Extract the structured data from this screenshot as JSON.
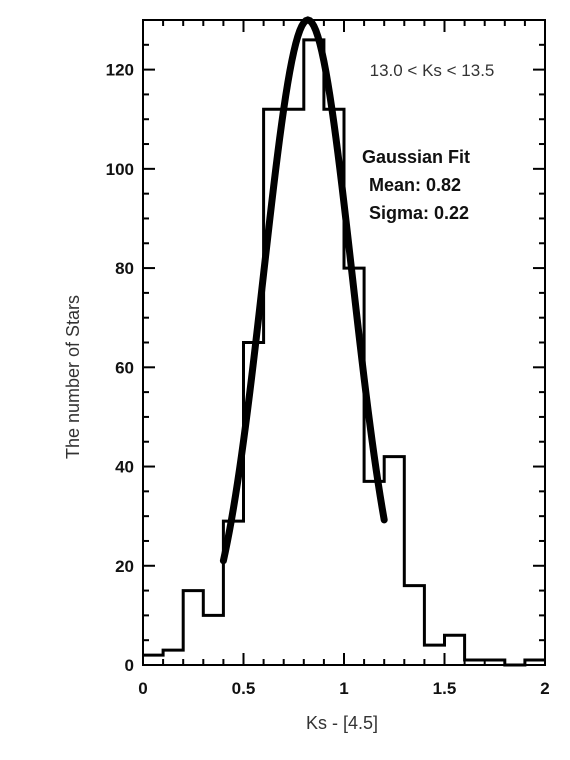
{
  "chart_data": {
    "type": "bar",
    "title": "",
    "xlabel": "Ks - [4.5]",
    "ylabel": "The number of Stars",
    "xlim": [
      0,
      2
    ],
    "ylim": [
      0,
      130
    ],
    "x_ticks": [
      0,
      0.5,
      1,
      1.5,
      2
    ],
    "x_tick_labels": [
      "0",
      "0.5",
      "1",
      "1.5",
      "2"
    ],
    "y_ticks": [
      0,
      20,
      40,
      60,
      80,
      100,
      120
    ],
    "y_tick_labels": [
      "0",
      "20",
      "40",
      "60",
      "80",
      "100",
      "120"
    ],
    "histogram": {
      "bin_edges": [
        0,
        0.1,
        0.2,
        0.3,
        0.4,
        0.5,
        0.6,
        0.7,
        0.8,
        0.9,
        1.0,
        1.1,
        1.2,
        1.3,
        1.4,
        1.5,
        1.6,
        1.7,
        1.8,
        1.9,
        2.0
      ],
      "counts": [
        2,
        3,
        15,
        10,
        29,
        65,
        112,
        112,
        126,
        112,
        80,
        37,
        42,
        16,
        4,
        6,
        1,
        1,
        0,
        1
      ]
    },
    "fit": {
      "type": "gaussian",
      "mean": 0.82,
      "sigma": 0.22,
      "amplitude": 130,
      "x_range": [
        0.4,
        1.2
      ]
    },
    "annotations": {
      "range": "13.0 < Ks < 13.5",
      "fit_title": "Gaussian Fit",
      "fit_mean": "Mean: 0.82",
      "fit_sigma": "Sigma: 0.22"
    }
  }
}
